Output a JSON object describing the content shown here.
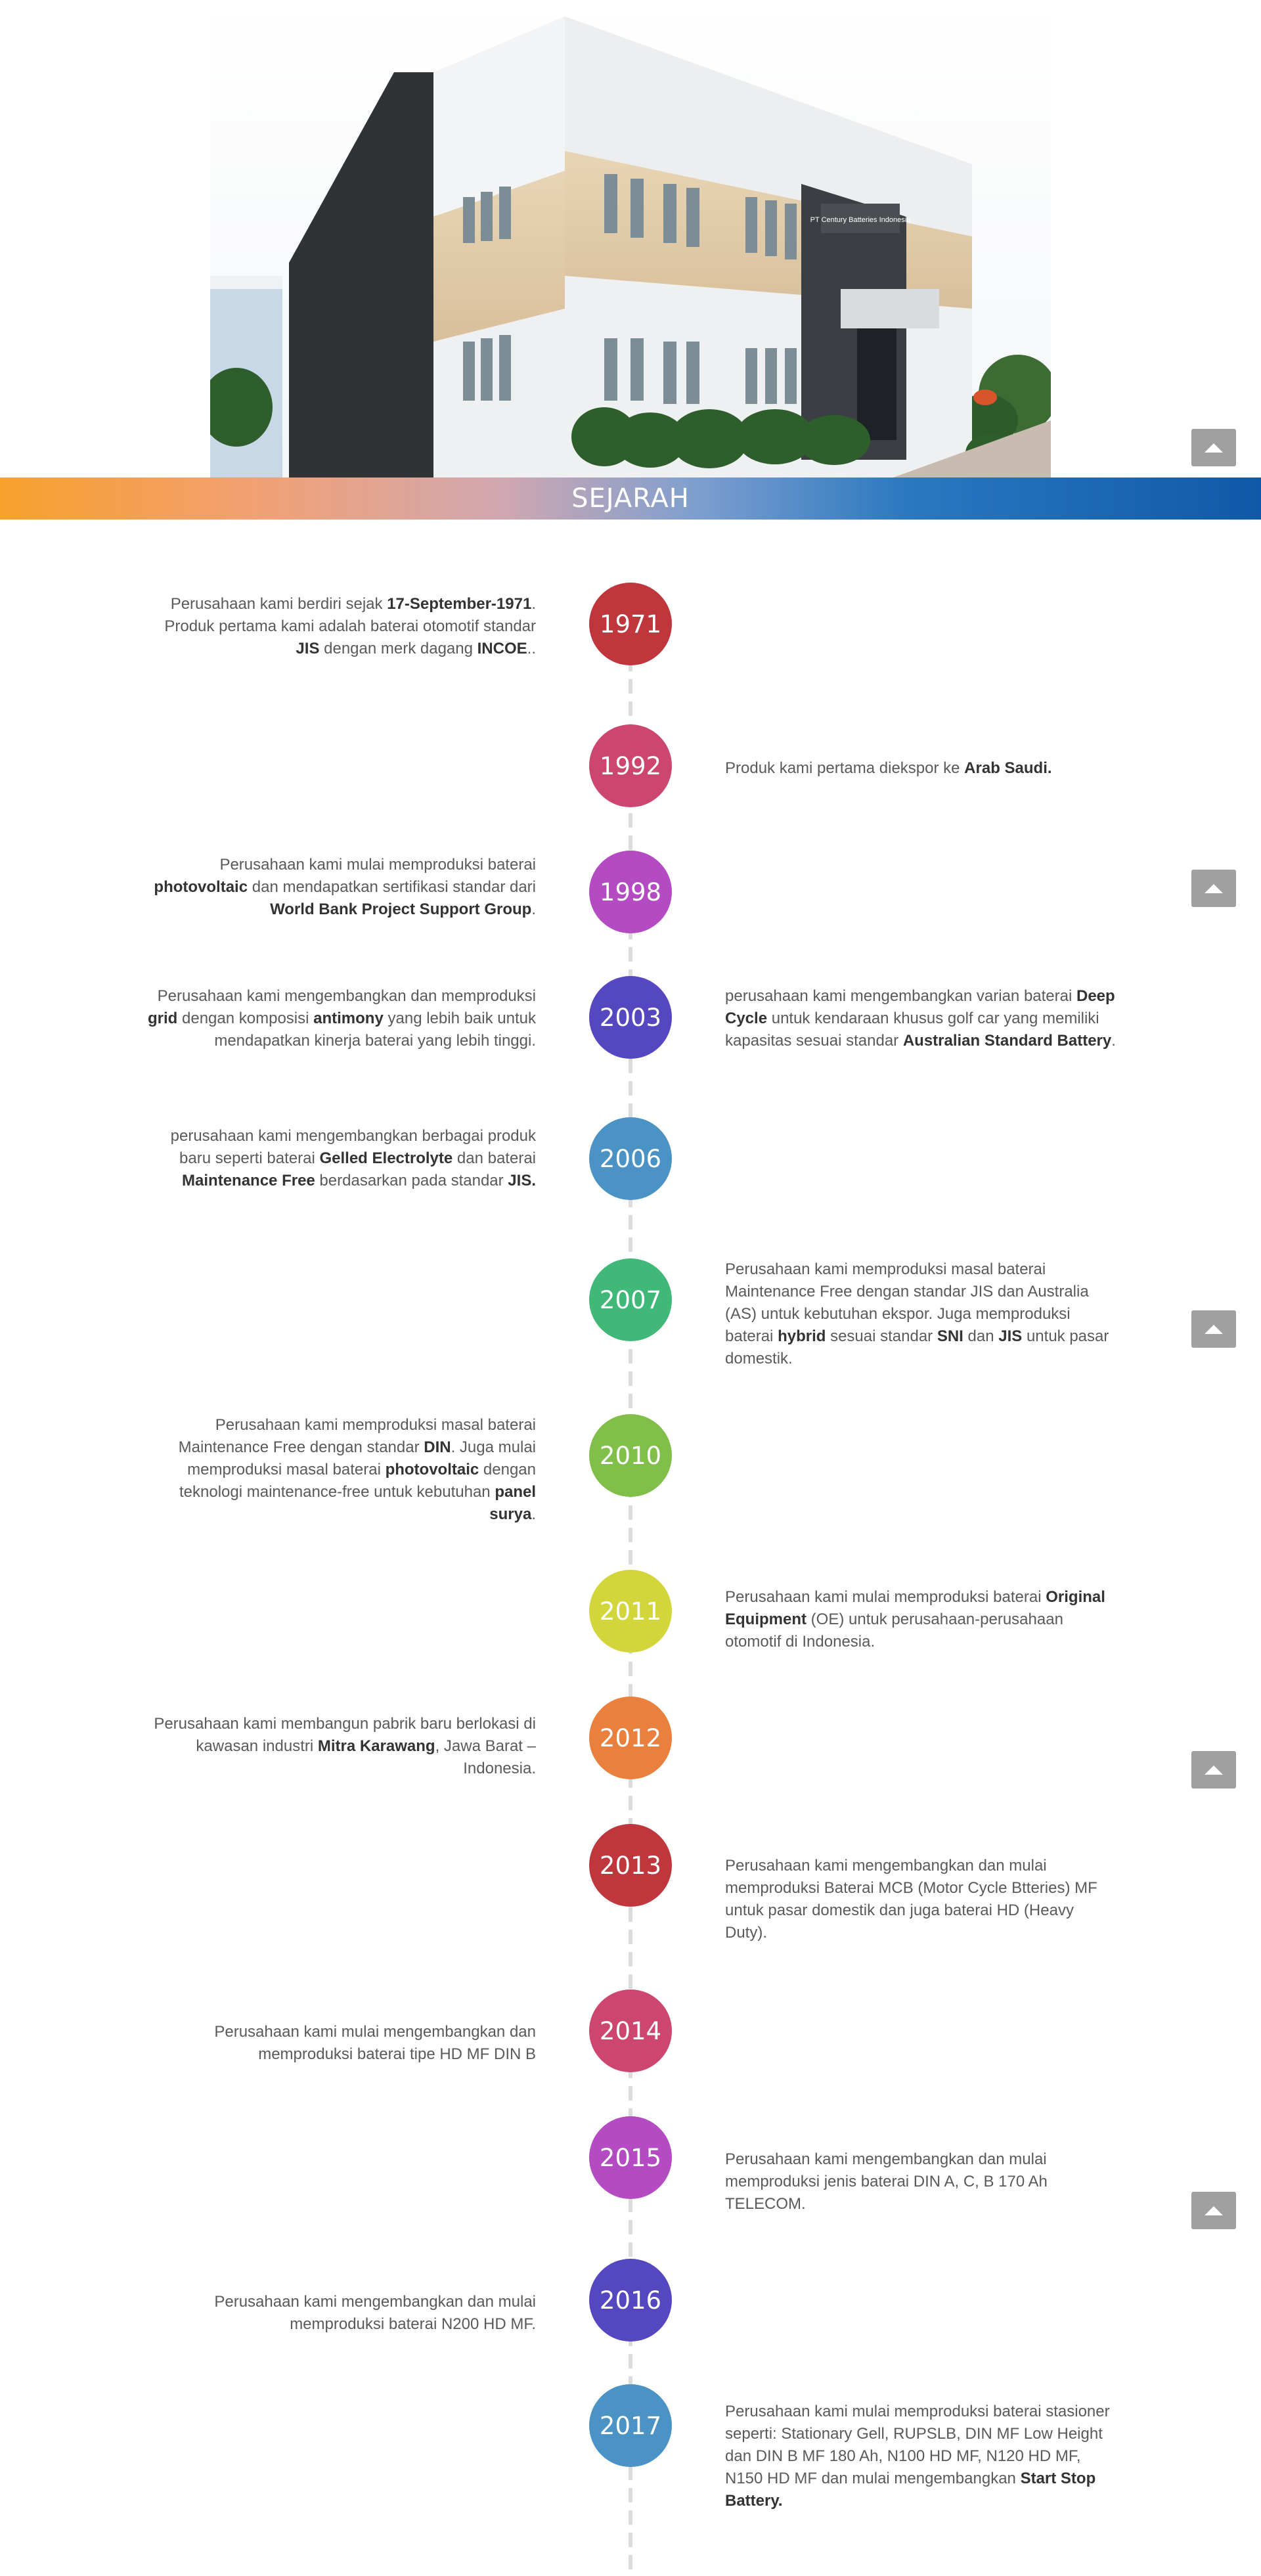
{
  "banner": {
    "title": "SEJARAH"
  },
  "timeline": [
    {
      "year": "1971",
      "color": "#c0363d",
      "side": "left",
      "parts": [
        [
          "Perusahaan kami berdiri sejak  ",
          false
        ],
        [
          "17-September-1971",
          true
        ],
        [
          ". Produk pertama kami adalah baterai otomotif standar ",
          false
        ],
        [
          "JIS",
          true
        ],
        [
          " dengan merk dagang ",
          false
        ],
        [
          "INCOE",
          true
        ],
        [
          "..",
          false
        ]
      ]
    },
    {
      "year": "1992",
      "color": "#cc4670",
      "side": "right",
      "parts": [
        [
          "Produk kami pertama diekspor ke ",
          false
        ],
        [
          "Arab Saudi.",
          true
        ]
      ]
    },
    {
      "year": "1998",
      "color": "#b44bc2",
      "side": "left",
      "parts": [
        [
          "Perusahaan kami mulai memproduksi baterai ",
          false
        ],
        [
          "photovoltaic",
          true
        ],
        [
          " dan mendapatkan sertifikasi standar dari ",
          false
        ],
        [
          "World Bank Project Support Group",
          true
        ],
        [
          ".",
          false
        ]
      ]
    },
    {
      "year": "2003",
      "color": "#5447c0",
      "side": "both",
      "parts": [
        [
          "Perusahaan kami mengembangkan dan memproduksi ",
          false
        ],
        [
          "grid",
          true
        ],
        [
          " dengan komposisi ",
          false
        ],
        [
          "antimony",
          true
        ],
        [
          " yang lebih baik untuk mendapatkan kinerja baterai yang lebih tinggi.",
          false
        ]
      ],
      "parts_right": [
        [
          "perusahaan kami mengembangkan varian baterai ",
          false
        ],
        [
          "Deep Cycle",
          true
        ],
        [
          " untuk kendaraan khusus golf car yang memiliki kapasitas sesuai standar ",
          false
        ],
        [
          "Australian Standard Battery",
          true
        ],
        [
          ".",
          false
        ]
      ]
    },
    {
      "year": "2006",
      "color": "#4a93c4",
      "side": "left",
      "parts": [
        [
          "perusahaan kami mengembangkan berbagai produk baru seperti baterai ",
          false
        ],
        [
          "Gelled Electrolyte",
          true
        ],
        [
          " dan baterai ",
          false
        ],
        [
          "Maintenance Free",
          true
        ],
        [
          " berdasarkan pada standar ",
          false
        ],
        [
          "JIS.",
          true
        ]
      ]
    },
    {
      "year": "2007",
      "color": "#40b878",
      "side": "right",
      "parts": [
        [
          "Perusahaan kami memproduksi masal baterai Maintenance Free dengan standar JIS dan  Australia (AS) untuk kebutuhan ekspor. Juga memproduksi baterai ",
          false
        ],
        [
          "hybrid",
          true
        ],
        [
          " sesuai standar ",
          false
        ],
        [
          "SNI",
          true
        ],
        [
          " dan ",
          false
        ],
        [
          "JIS",
          true
        ],
        [
          " untuk pasar domestik.",
          false
        ]
      ]
    },
    {
      "year": "2010",
      "color": "#80c04a",
      "side": "left",
      "parts": [
        [
          "Perusahaan kami memproduksi masal baterai Maintenance Free dengan standar ",
          false
        ],
        [
          "DIN",
          true
        ],
        [
          ". Juga mulai memproduksi masal baterai ",
          false
        ],
        [
          "photovoltaic",
          true
        ],
        [
          " dengan teknologi maintenance-free untuk kebutuhan ",
          false
        ],
        [
          "panel surya",
          true
        ],
        [
          ".",
          false
        ]
      ]
    },
    {
      "year": "2011",
      "color": "#d3d63b",
      "side": "right",
      "parts": [
        [
          "Perusahaan kami mulai memproduksi baterai ",
          false
        ],
        [
          "Original Equipment",
          true
        ],
        [
          " (OE) untuk perusahaan-perusahaan otomotif di Indonesia.",
          false
        ]
      ]
    },
    {
      "year": "2012",
      "color": "#e9803e",
      "side": "left",
      "parts": [
        [
          "Perusahaan kami membangun pabrik baru berlokasi di kawasan industri ",
          false
        ],
        [
          "Mitra Karawang",
          true
        ],
        [
          ", Jawa Barat – Indonesia.",
          false
        ]
      ]
    },
    {
      "year": "2013",
      "color": "#c0363d",
      "side": "right",
      "parts": [
        [
          "Perusahaan kami mengembangkan dan mulai memproduksi Baterai MCB (Motor Cycle Btteries) MF untuk pasar domestik dan juga baterai HD (Heavy Duty).",
          false
        ]
      ]
    },
    {
      "year": "2014",
      "color": "#cc4670",
      "side": "left",
      "parts": [
        [
          "Perusahaan kami mulai mengembangkan dan memproduksi baterai tipe HD MF DIN B",
          false
        ]
      ]
    },
    {
      "year": "2015",
      "color": "#b44bc2",
      "side": "right",
      "parts": [
        [
          "Perusahaan kami mengembangkan dan mulai memproduksi jenis baterai DIN A, C, B 170 Ah TELECOM.",
          false
        ]
      ]
    },
    {
      "year": "2016",
      "color": "#5447c0",
      "side": "left",
      "parts": [
        [
          "Perusahaan kami mengembangkan dan mulai memproduksi baterai N200 HD MF.",
          false
        ]
      ]
    },
    {
      "year": "2017",
      "color": "#4a93c4",
      "side": "right",
      "parts": [
        [
          "Perusahaan kami mulai memproduksi baterai stasioner seperti: Stationary Gell, RUPSLB, DIN MF Low Height dan DIN B MF 180 Ah, N100 HD MF, N120 HD MF, N150 HD MF dan mulai mengembangkan ",
          false
        ],
        [
          "Start Stop Battery.",
          true
        ]
      ]
    }
  ],
  "hero": {
    "sign_text": "PT Century Batteries Indonesia"
  },
  "icons": {
    "scroll_up": "caret-up-icon"
  }
}
